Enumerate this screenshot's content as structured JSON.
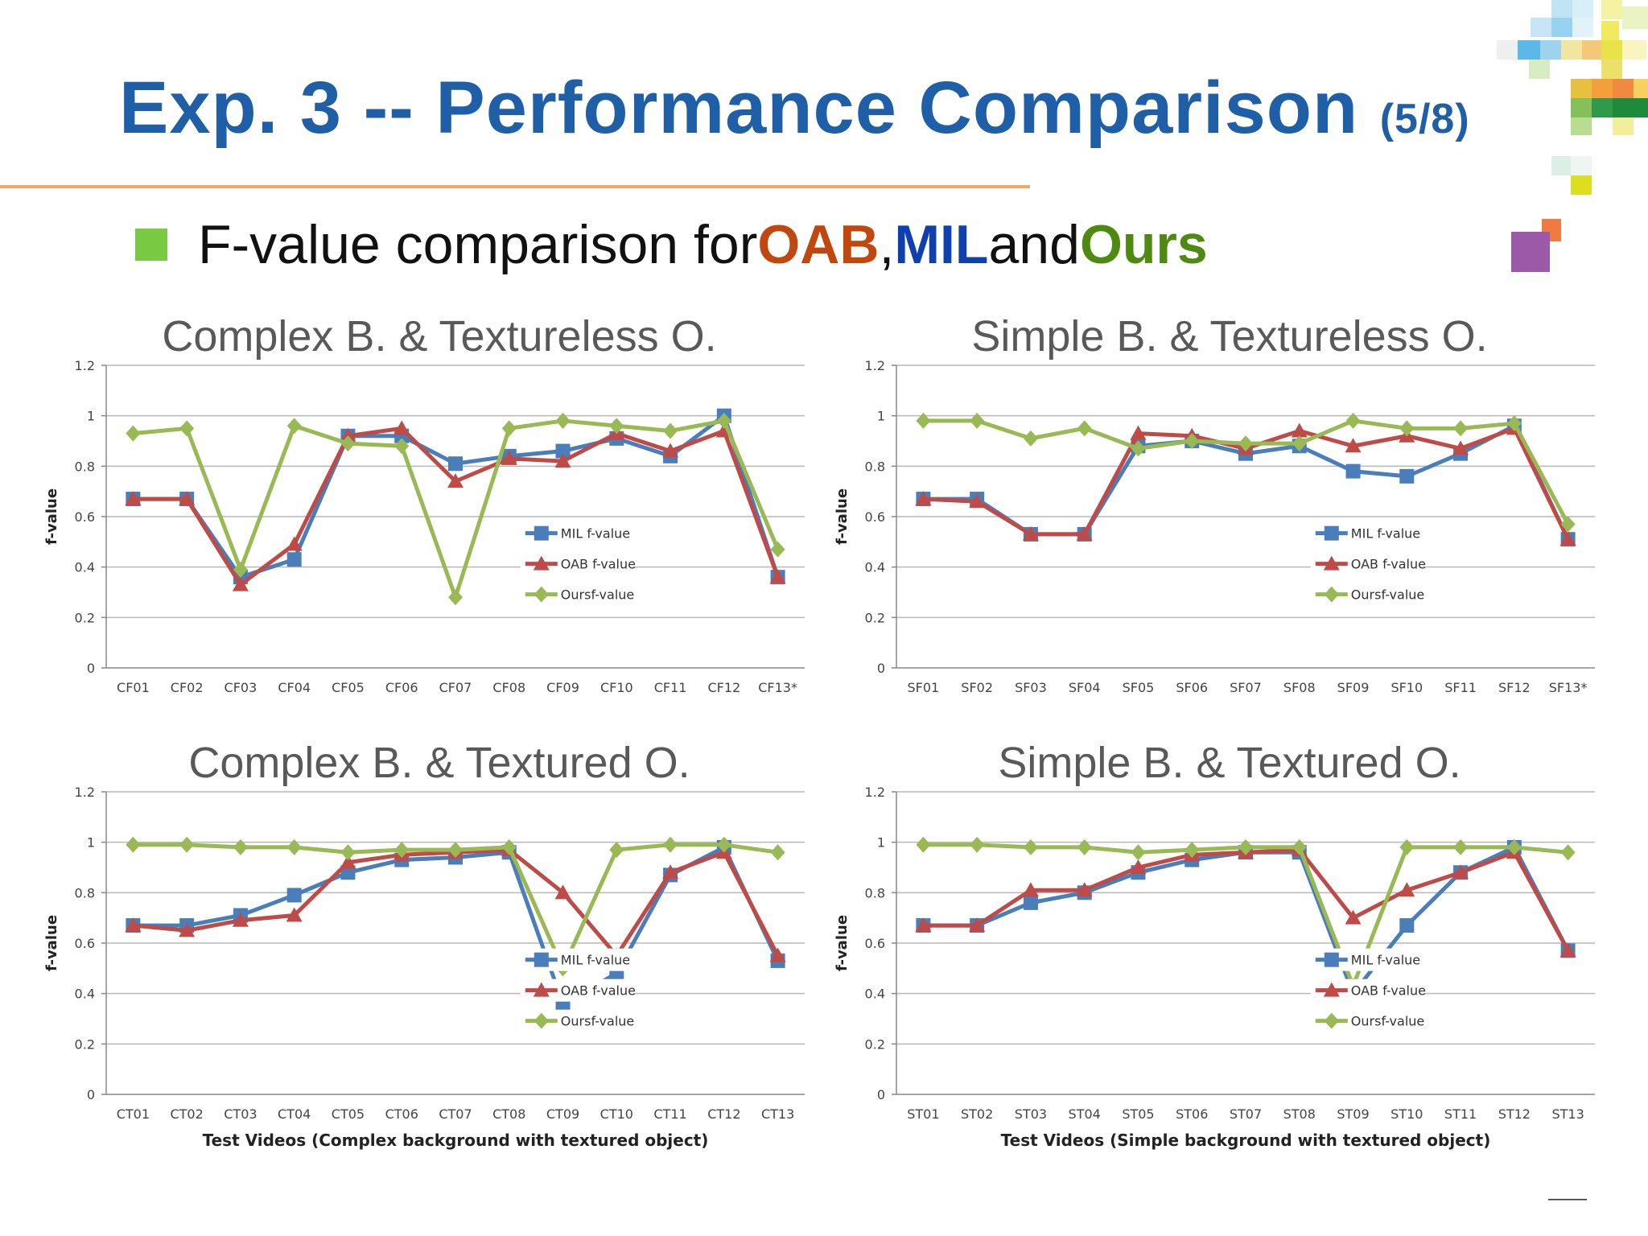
{
  "slide": {
    "title": "Exp. 3 -- Performance Comparison",
    "title_suffix": "(5/8)",
    "bullet": {
      "pre": "F-value comparison for ",
      "oab": "OAB",
      "sep": ", ",
      "mil": "MIL",
      "and": " and ",
      "ours": "Ours"
    },
    "page_mark": "——",
    "colors": {
      "title": "#1f5fa8",
      "oab": "#c0480f",
      "mil": "#1040b0",
      "ours": "#4f8a10",
      "bullet": "#7ac943"
    }
  },
  "chart_data": [
    {
      "type": "line",
      "title": "Complex B. & Textureless O.",
      "xlabel": "",
      "ylabel": "f-value",
      "ylim": [
        0,
        1.2
      ],
      "yticks": [
        "0",
        "0.2",
        "0.4",
        "0.6",
        "0.8",
        "1",
        "1.2"
      ],
      "grid": true,
      "legend": "bottom-right",
      "categories": [
        "CF01",
        "CF02",
        "CF03",
        "CF04",
        "CF05",
        "CF06",
        "CF07",
        "CF08",
        "CF09",
        "CF10",
        "CF11",
        "CF12",
        "CF13*"
      ],
      "series": [
        {
          "name": "MIL f-value",
          "color": "#4a7ebb",
          "marker": "square",
          "values": [
            0.67,
            0.67,
            0.36,
            0.43,
            0.92,
            0.92,
            0.81,
            0.84,
            0.86,
            0.91,
            0.84,
            1.0,
            0.36
          ]
        },
        {
          "name": "OAB f-value",
          "color": "#be4b48",
          "marker": "triangle",
          "values": [
            0.67,
            0.67,
            0.33,
            0.49,
            0.92,
            0.95,
            0.74,
            0.83,
            0.82,
            0.93,
            0.86,
            0.94,
            0.36
          ]
        },
        {
          "name": "Oursf-value",
          "color": "#98b954",
          "marker": "diamond",
          "values": [
            0.93,
            0.95,
            0.39,
            0.96,
            0.89,
            0.88,
            0.28,
            0.95,
            0.98,
            0.96,
            0.94,
            0.98,
            0.47
          ]
        }
      ]
    },
    {
      "type": "line",
      "title": "Simple B. & Textureless O.",
      "xlabel": "",
      "ylabel": "f-value",
      "ylim": [
        0,
        1.2
      ],
      "yticks": [
        "0",
        "0.2",
        "0.4",
        "0.6",
        "0.8",
        "1",
        "1.2"
      ],
      "grid": true,
      "legend": "bottom-right",
      "categories": [
        "SF01",
        "SF02",
        "SF03",
        "SF04",
        "SF05",
        "SF06",
        "SF07",
        "SF08",
        "SF09",
        "SF10",
        "SF11",
        "SF12",
        "SF13*"
      ],
      "series": [
        {
          "name": "MIL f-value",
          "color": "#4a7ebb",
          "marker": "square",
          "values": [
            0.67,
            0.67,
            0.53,
            0.53,
            0.88,
            0.9,
            0.85,
            0.88,
            0.78,
            0.76,
            0.85,
            0.96,
            0.51
          ]
        },
        {
          "name": "OAB f-value",
          "color": "#be4b48",
          "marker": "triangle",
          "values": [
            0.67,
            0.66,
            0.53,
            0.53,
            0.93,
            0.92,
            0.87,
            0.94,
            0.88,
            0.92,
            0.87,
            0.95,
            0.51
          ]
        },
        {
          "name": "Oursf-value",
          "color": "#98b954",
          "marker": "diamond",
          "values": [
            0.98,
            0.98,
            0.91,
            0.95,
            0.87,
            0.9,
            0.89,
            0.89,
            0.98,
            0.95,
            0.95,
            0.97,
            0.57
          ]
        }
      ]
    },
    {
      "type": "line",
      "title": "Complex B. & Textured O.",
      "xlabel": "Test Videos (Complex background with textured object)",
      "ylabel": "f-value",
      "ylim": [
        0,
        1.2
      ],
      "yticks": [
        "0",
        "0.2",
        "0.4",
        "0.6",
        "0.8",
        "1",
        "1.2"
      ],
      "grid": true,
      "legend": "bottom-right",
      "categories": [
        "CT01",
        "CT02",
        "CT03",
        "CT04",
        "CT05",
        "CT06",
        "CT07",
        "CT08",
        "CT09",
        "CT10",
        "CT11",
        "CT12",
        "CT13"
      ],
      "series": [
        {
          "name": "MIL f-value",
          "color": "#4a7ebb",
          "marker": "square",
          "values": [
            0.67,
            0.67,
            0.71,
            0.79,
            0.88,
            0.93,
            0.94,
            0.96,
            0.36,
            0.48,
            0.87,
            0.98,
            0.53
          ]
        },
        {
          "name": "OAB f-value",
          "color": "#be4b48",
          "marker": "triangle",
          "values": [
            0.67,
            0.65,
            0.69,
            0.71,
            0.92,
            0.95,
            0.96,
            0.97,
            0.8,
            0.55,
            0.88,
            0.96,
            0.55
          ]
        },
        {
          "name": "Oursf-value",
          "color": "#98b954",
          "marker": "diamond",
          "values": [
            0.99,
            0.99,
            0.98,
            0.98,
            0.96,
            0.97,
            0.97,
            0.98,
            0.5,
            0.97,
            0.99,
            0.99,
            0.96
          ]
        }
      ]
    },
    {
      "type": "line",
      "title": "Simple B. & Textured O.",
      "xlabel": "Test Videos (Simple background with textured object)",
      "ylabel": "f-value",
      "ylim": [
        0,
        1.2
      ],
      "yticks": [
        "0",
        "0.2",
        "0.4",
        "0.6",
        "0.8",
        "1",
        "1.2"
      ],
      "grid": true,
      "legend": "bottom-right",
      "categories": [
        "ST01",
        "ST02",
        "ST03",
        "ST04",
        "ST05",
        "ST06",
        "ST07",
        "ST08",
        "ST09",
        "ST10",
        "ST11",
        "ST12",
        "ST13"
      ],
      "series": [
        {
          "name": "MIL f-value",
          "color": "#4a7ebb",
          "marker": "square",
          "values": [
            0.67,
            0.67,
            0.76,
            0.8,
            0.88,
            0.93,
            0.96,
            0.96,
            0.4,
            0.67,
            0.88,
            0.98,
            0.57
          ]
        },
        {
          "name": "OAB f-value",
          "color": "#be4b48",
          "marker": "triangle",
          "values": [
            0.67,
            0.67,
            0.81,
            0.81,
            0.9,
            0.95,
            0.96,
            0.97,
            0.7,
            0.81,
            0.88,
            0.96,
            0.57
          ]
        },
        {
          "name": "Oursf-value",
          "color": "#98b954",
          "marker": "diamond",
          "values": [
            0.99,
            0.99,
            0.98,
            0.98,
            0.96,
            0.97,
            0.98,
            0.98,
            0.43,
            0.98,
            0.98,
            0.98,
            0.96
          ]
        }
      ]
    }
  ]
}
